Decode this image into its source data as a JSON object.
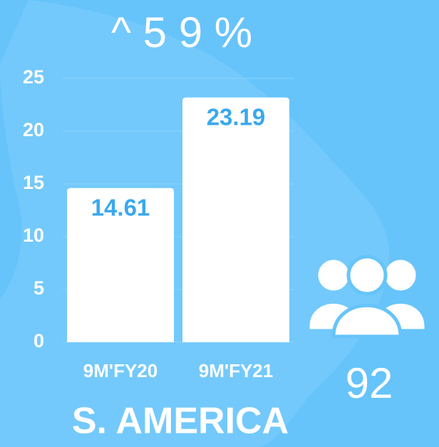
{
  "chart_data": {
    "type": "bar",
    "title": "^ 5 9 %",
    "categories": [
      "9M'FY20",
      "9M'FY21"
    ],
    "values": [
      14.61,
      23.19
    ],
    "color": "#ffffff",
    "label_color": "#3aa8ee",
    "ylim": [
      0,
      25
    ],
    "yticks": [
      0,
      5,
      10,
      15,
      20,
      25
    ],
    "grid": true,
    "region": "S. AMERICA",
    "annotation": "92"
  }
}
